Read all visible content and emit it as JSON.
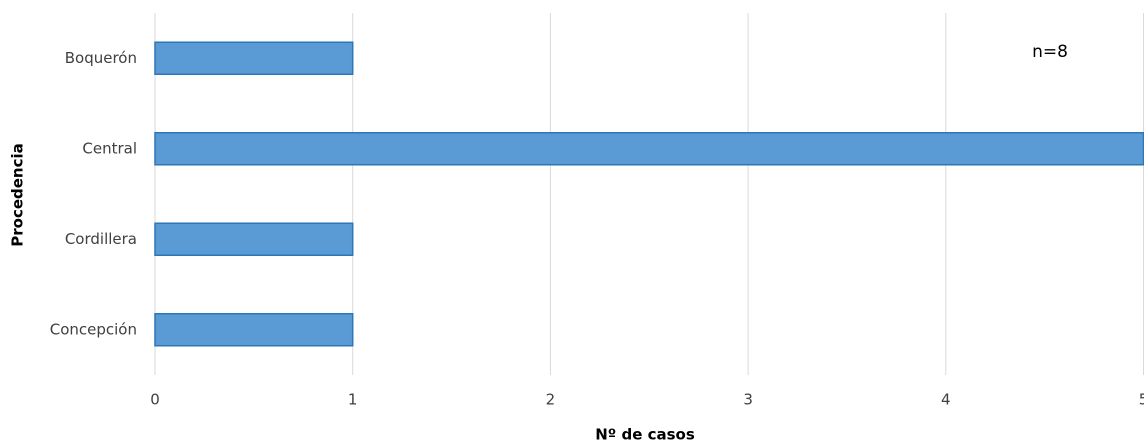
{
  "chart_data": {
    "type": "hbar",
    "categories": [
      "Boquerón",
      "Central",
      "Cordillera",
      "Concepción"
    ],
    "values": [
      1,
      5,
      1,
      1
    ],
    "color": "#5b9bd5",
    "edge_color": "#2e75b6",
    "xlim": [
      0,
      5
    ],
    "xticks": [
      0,
      1,
      2,
      3,
      4,
      5
    ],
    "grid": true,
    "xlabel": "Nº de casos",
    "ylabel": "Procedencia",
    "annotation": "n=8"
  }
}
